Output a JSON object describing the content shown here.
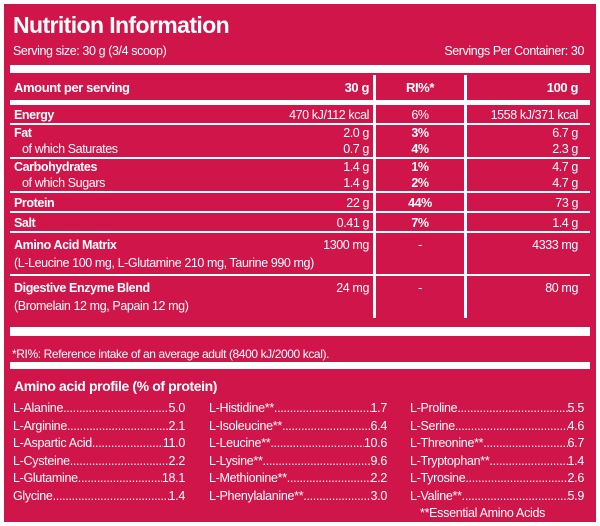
{
  "title": "Nutrition Information",
  "serving_size": "Serving size: 30 g (3/4 scoop)",
  "servings_per_container": "Servings Per Container: 30",
  "header": {
    "label": "Amount per serving",
    "per_serving": "30 g",
    "ri": "RI%*",
    "per_100": "100 g"
  },
  "rows": [
    {
      "label": "Energy",
      "per_serving": "470 kJ/112 kcal",
      "ri": "6%",
      "per_100": "1558 kJ/371 kcal"
    },
    {
      "label": "Fat",
      "per_serving": "2.0 g",
      "ri": "3%",
      "per_100": "6.7 g"
    },
    {
      "label": "of which Saturates",
      "per_serving": "0.7 g",
      "ri": "4%",
      "per_100": "2.3 g"
    },
    {
      "label": "Carbohydrates",
      "per_serving": "1.4 g",
      "ri": "1%",
      "per_100": "4.7 g"
    },
    {
      "label": "of which Sugars",
      "per_serving": "1.4 g",
      "ri": "2%",
      "per_100": "4.7 g"
    },
    {
      "label": "Protein",
      "per_serving": "22 g",
      "ri": "44%",
      "per_100": "73 g"
    },
    {
      "label": "Salt",
      "per_serving": "0.41 g",
      "ri": "7%",
      "per_100": "1.4 g"
    },
    {
      "label": "Amino Acid Matrix",
      "detail": "(L-Leucine 100 mg, L-Glutamine 210 mg, Taurine 990 mg)",
      "per_serving": "1300 mg",
      "ri": "-",
      "per_100": "4333 mg"
    },
    {
      "label": "Digestive Enzyme Blend",
      "detail": "(Bromelain 12 mg, Papain 12 mg)",
      "per_serving": "24 mg",
      "ri": "-",
      "per_100": "80 mg"
    }
  ],
  "ri_note": "*RI%: Reference intake of an average adult (8400 kJ/2000 kcal).",
  "amino_profile": {
    "title": "Amino acid profile (% of protein)",
    "columns": [
      [
        {
          "name": "L-Alanine",
          "value": "5.0"
        },
        {
          "name": "L-Arginine",
          "value": "2.1"
        },
        {
          "name": "L-Aspartic Acid ",
          "value": "11.0"
        },
        {
          "name": "L-Cysteine ",
          "value": "2.2"
        },
        {
          "name": "L-Glutamine",
          "value": "18.1"
        },
        {
          "name": "Glycine ",
          "value": "1.4"
        }
      ],
      [
        {
          "name": "L-Histidine** ",
          "value": "1.7"
        },
        {
          "name": "L-Isoleucine** ",
          "value": "6.4"
        },
        {
          "name": "L-Leucine** ",
          "value": "10.6"
        },
        {
          "name": "L-Lysine** ",
          "value": "9.6"
        },
        {
          "name": "L-Methionine** ",
          "value": "2.2"
        },
        {
          "name": "L-Phenylalanine**",
          "value": "3.0"
        }
      ],
      [
        {
          "name": "L-Proline",
          "value": "5.5"
        },
        {
          "name": "L-Serine ",
          "value": "4.6"
        },
        {
          "name": "L-Threonine** ",
          "value": "6.7"
        },
        {
          "name": "L-Tryptophan** ",
          "value": "1.4"
        },
        {
          "name": "L-Tyrosine ",
          "value": "2.6"
        },
        {
          "name": "L-Valine** ",
          "value": "5.9"
        }
      ]
    ],
    "essential_note": "**Essential Amino Acids"
  }
}
